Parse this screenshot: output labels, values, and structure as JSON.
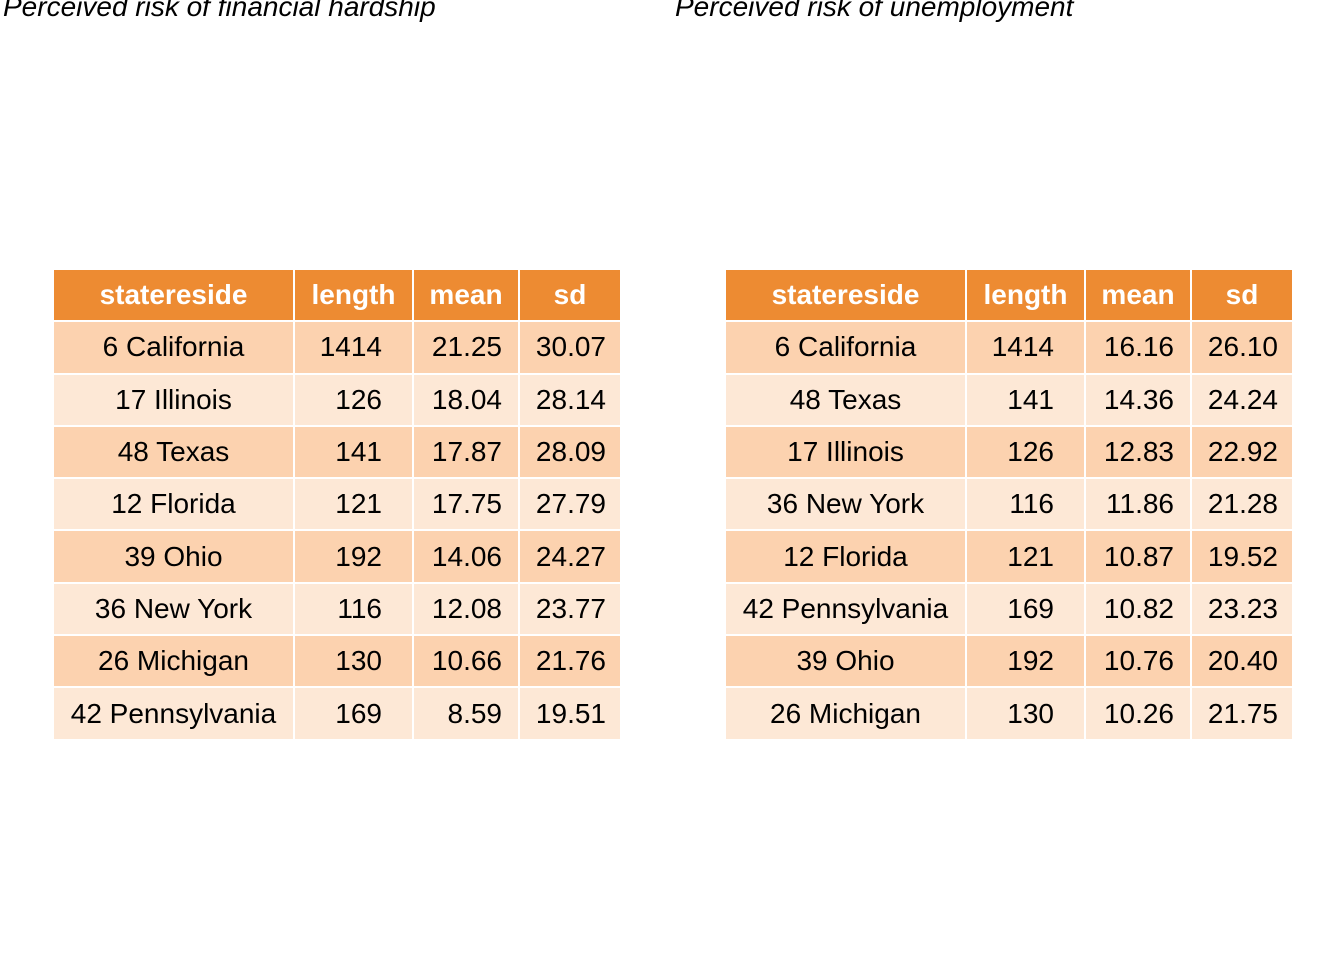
{
  "colors": {
    "header_bg": "#ED8B32",
    "header_text": "#FFFFFF",
    "row_dark": "#FCD2AF",
    "row_light": "#FDE8D6",
    "text": "#000000"
  },
  "chart_data": [
    {
      "type": "table",
      "title": "Perceived risk of financial hardship",
      "columns": [
        "statereside",
        "length",
        "mean",
        "sd"
      ],
      "rows": [
        [
          "6 California",
          "1414",
          "21.25",
          "30.07"
        ],
        [
          "17 Illinois",
          "126",
          "18.04",
          "28.14"
        ],
        [
          "48 Texas",
          "141",
          "17.87",
          "28.09"
        ],
        [
          "12 Florida",
          "121",
          "17.75",
          "27.79"
        ],
        [
          "39 Ohio",
          "192",
          "14.06",
          "24.27"
        ],
        [
          "36 New York",
          "116",
          "12.08",
          "23.77"
        ],
        [
          "26 Michigan",
          "130",
          "10.66",
          "21.76"
        ],
        [
          "42 Pennsylvania",
          "169",
          "8.59",
          "19.51"
        ]
      ]
    },
    {
      "type": "table",
      "title": "Perceived risk of unemployment",
      "columns": [
        "statereside",
        "length",
        "mean",
        "sd"
      ],
      "rows": [
        [
          "6 California",
          "1414",
          "16.16",
          "26.10"
        ],
        [
          "48 Texas",
          "141",
          "14.36",
          "24.24"
        ],
        [
          "17 Illinois",
          "126",
          "12.83",
          "22.92"
        ],
        [
          "36 New York",
          "116",
          "11.86",
          "21.28"
        ],
        [
          "12 Florida",
          "121",
          "10.87",
          "19.52"
        ],
        [
          "42 Pennsylvania",
          "169",
          "10.82",
          "23.23"
        ],
        [
          "39 Ohio",
          "192",
          "10.76",
          "20.40"
        ],
        [
          "26 Michigan",
          "130",
          "10.26",
          "21.75"
        ]
      ]
    }
  ]
}
